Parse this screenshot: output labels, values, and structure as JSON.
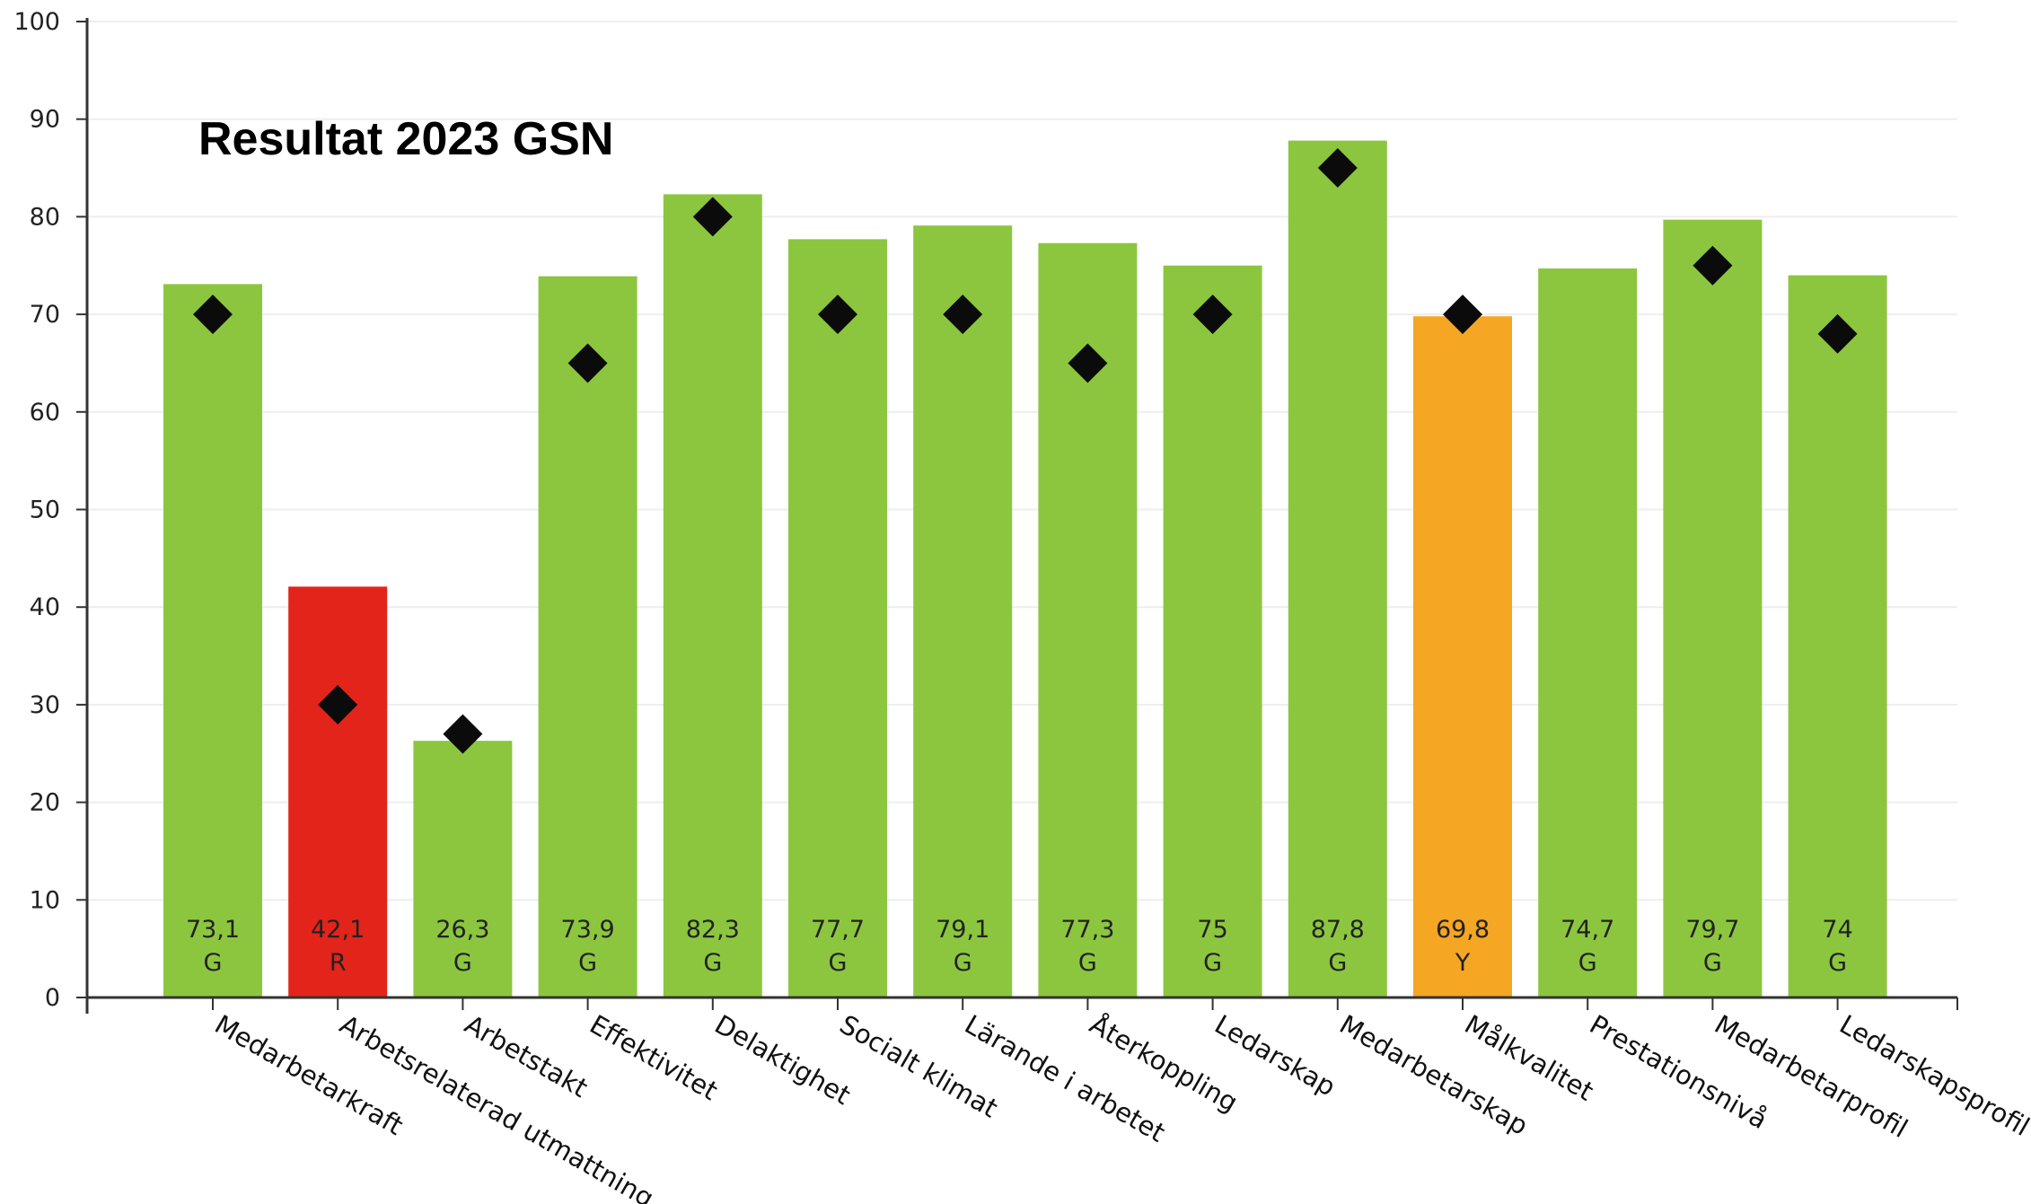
{
  "chart_data": {
    "type": "bar",
    "title": "Resultat 2023 GSN",
    "categories": [
      "Medarbetarkraft",
      "Arbetsrelaterad utmattning",
      "Arbetstakt",
      "Effektivitet",
      "Delaktighet",
      "Socialt klimat",
      "Lärande i arbetet",
      "Återkoppling",
      "Ledarskap",
      "Medarbetarskap",
      "Målkvalitet",
      "Prestationsnivå",
      "Medarbetarprofil",
      "Ledarskapsprofil"
    ],
    "values": [
      73.1,
      42.1,
      26.3,
      73.9,
      82.3,
      77.7,
      79.1,
      77.3,
      75,
      87.8,
      69.8,
      74.7,
      79.7,
      74
    ],
    "value_labels": [
      "73,1",
      "42,1",
      "26,3",
      "73,9",
      "82,3",
      "77,7",
      "79,1",
      "77,3",
      "75",
      "87,8",
      "69,8",
      "74,7",
      "79,7",
      "74"
    ],
    "status_labels": [
      "G",
      "R",
      "G",
      "G",
      "G",
      "G",
      "G",
      "G",
      "G",
      "G",
      "Y",
      "G",
      "G",
      "G"
    ],
    "markers": [
      70,
      30,
      27,
      65,
      80,
      70,
      70,
      65,
      70,
      85,
      70,
      null,
      75,
      68
    ],
    "ylim": [
      0,
      100
    ],
    "yticks": [
      "0",
      "10",
      "20",
      "30",
      "40",
      "50",
      "60",
      "70",
      "80",
      "90",
      "100"
    ],
    "grid": true,
    "colors": {
      "G": "#8cc63f",
      "R": "#e3241b",
      "Y": "#f5a623",
      "marker": "#0b0b0b",
      "axis": "#333333",
      "grid": "#eeeeee"
    }
  }
}
